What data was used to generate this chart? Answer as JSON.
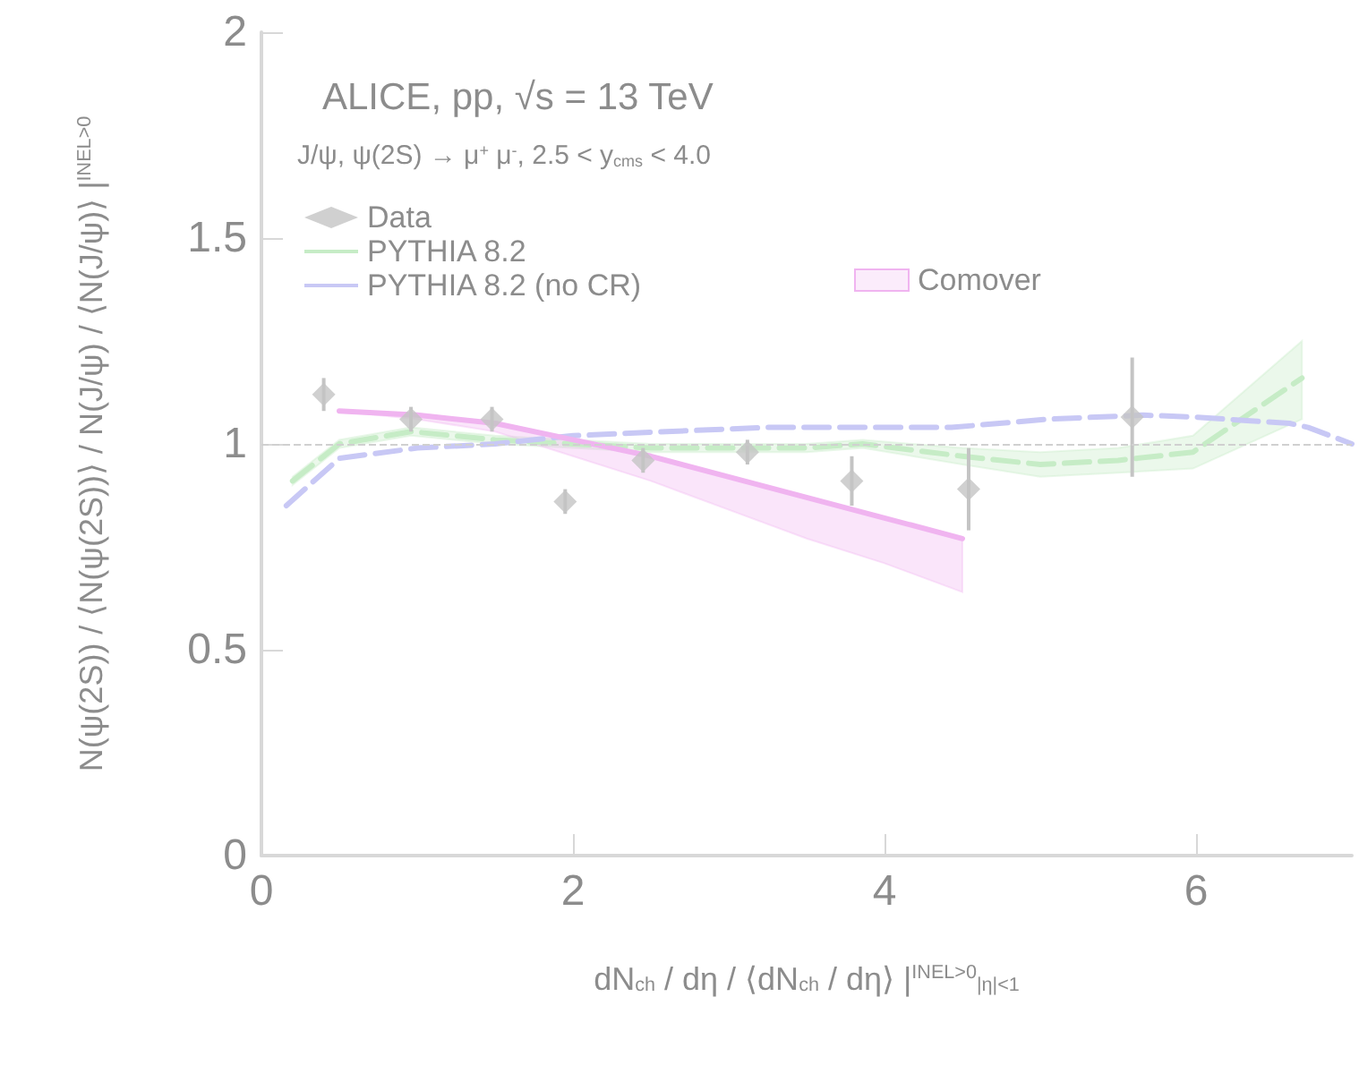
{
  "chart_data": {
    "type": "scatter",
    "xlabel": "dN$_{ch}$ / dη / ⟨dN$_{ch}$ / dη⟩ |$^{INEL>0}$$_{|η|<1}$",
    "ylabel": "N(ψ(2S)) / ⟨N(ψ(2S))⟩ / N(J/ψ) / ⟨N(J/ψ)⟩ |$^{INEL>0}$",
    "annotations": [
      "ALICE, pp, √s = 13 TeV",
      "J/ψ, ψ(2S) → μ$^{+}$ μ$^{-}$, 2.5 < y$_{cms}$ < 4.0"
    ],
    "xlim": [
      0,
      7
    ],
    "xticks": [
      0,
      2,
      4,
      6
    ],
    "ylim": [
      0,
      2
    ],
    "yticks": [
      0,
      0.5,
      1,
      1.5,
      2
    ],
    "grid": false,
    "legend": "top left",
    "ref_lines": [
      {
        "axis": "y",
        "value": 1,
        "color": "#d0d0d0",
        "line_style": "dashed"
      }
    ],
    "series": [
      {
        "name": "Data",
        "type": "scatter",
        "color": "#c4c4c4",
        "marker": "diamond",
        "x": [
          0.4,
          0.96,
          1.48,
          1.95,
          2.45,
          3.12,
          3.79,
          4.54,
          5.59
        ],
        "values": [
          1.12,
          1.06,
          1.06,
          0.86,
          0.96,
          0.98,
          0.91,
          0.89,
          1.065
        ],
        "errors": [
          0.04,
          0.03,
          0.03,
          0.03,
          0.03,
          0.03,
          0.06,
          0.1,
          0.145
        ]
      },
      {
        "name": "PYTHIA 8.2",
        "type": "line",
        "color": "#c6ecc6",
        "marker": "none",
        "line_style": "dashed",
        "x": [
          0.2,
          0.5,
          0.96,
          1.5,
          2,
          2.5,
          3,
          3.5,
          3.86,
          4.5,
          5,
          5.5,
          5.98,
          6.68
        ],
        "values": [
          0.91,
          1.0,
          1.03,
          1.01,
          1.0,
          0.99,
          0.99,
          0.99,
          1.0,
          0.97,
          0.95,
          0.96,
          0.98,
          1.16
        ],
        "lower": [
          0.9,
          0.99,
          1.02,
          1.0,
          0.99,
          0.98,
          0.98,
          0.98,
          0.99,
          0.95,
          0.92,
          0.93,
          0.94,
          1.06
        ],
        "upper": [
          0.92,
          1.01,
          1.04,
          1.02,
          1.01,
          1.0,
          1.0,
          1.0,
          1.01,
          0.99,
          0.98,
          0.99,
          1.02,
          1.25
        ]
      },
      {
        "name": "PYTHIA 8.2 (no CR)",
        "type": "line",
        "color": "#c8c8f5",
        "marker": "none",
        "line_style": "dashed",
        "x": [
          0.16,
          0.5,
          1.0,
          1.5,
          2.0,
          2.6,
          3.25,
          4.43,
          5.05,
          5.66,
          6.0,
          6.35,
          6.6,
          6.72,
          7.0
        ],
        "values": [
          0.85,
          0.965,
          0.99,
          1.0,
          1.02,
          1.03,
          1.04,
          1.04,
          1.06,
          1.07,
          1.065,
          1.056,
          1.05,
          1.04,
          1.0
        ]
      },
      {
        "name": "Comover",
        "type": "line",
        "color": "#f0b4f0",
        "marker": "none",
        "line_style": "solid",
        "x": [
          0.5,
          1.0,
          1.5,
          2.0,
          2.5,
          3.0,
          3.5,
          4.0,
          4.5
        ],
        "values": [
          1.08,
          1.07,
          1.05,
          1.01,
          0.97,
          0.92,
          0.87,
          0.82,
          0.77
        ],
        "lower": [
          1.08,
          1.06,
          1.03,
          0.97,
          0.91,
          0.84,
          0.77,
          0.71,
          0.64
        ],
        "upper": [
          1.08,
          1.07,
          1.05,
          1.01,
          0.97,
          0.92,
          0.87,
          0.82,
          0.77
        ]
      }
    ]
  }
}
